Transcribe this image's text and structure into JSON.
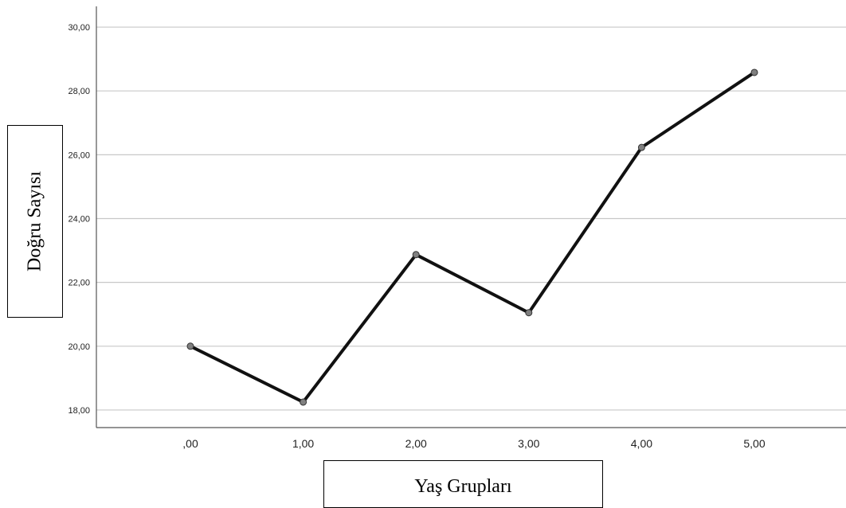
{
  "chart_data": {
    "type": "line",
    "x": [
      ",00",
      "1,00",
      "2,00",
      "3,00",
      "4,00",
      "5,00"
    ],
    "values": [
      20.0,
      18.25,
      22.87,
      21.05,
      26.23,
      28.58
    ],
    "yticks": [
      "18,00",
      "20,00",
      "22,00",
      "24,00",
      "26,00",
      "28,00",
      "30,00"
    ],
    "ytick_values": [
      18,
      20,
      22,
      24,
      26,
      28,
      30
    ],
    "ylim": [
      17.45,
      30.65
    ],
    "xlabel": "Yaş Grupları",
    "ylabel": "Doğru Sayısı",
    "grid": true,
    "colors": {
      "line": "#111111",
      "marker": "#808080",
      "grid": "#c8c8c8",
      "axis": "#555555"
    }
  }
}
